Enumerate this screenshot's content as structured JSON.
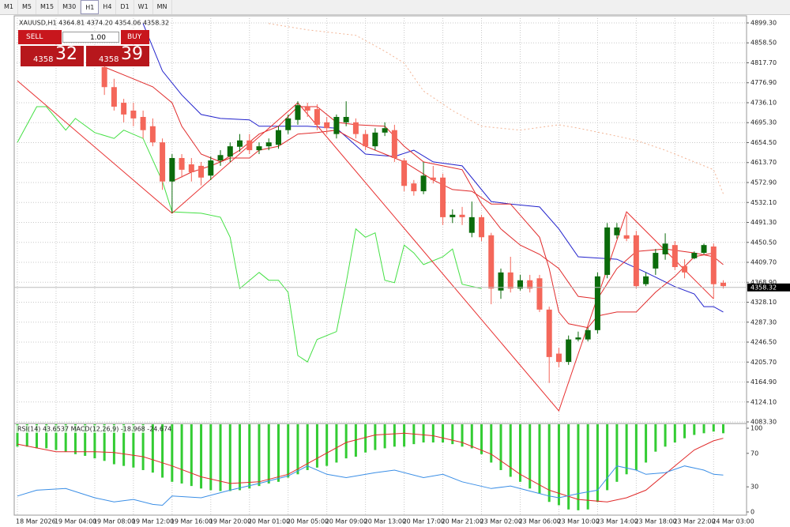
{
  "toolbar": {
    "timeframes": [
      "M1",
      "M5",
      "M15",
      "M30",
      "H1",
      "H4",
      "D1",
      "W1",
      "MN"
    ],
    "selected": "H1"
  },
  "trade_panel": {
    "sell": "SELL",
    "buy": "BUY",
    "lot": "1.00",
    "sell_price": {
      "prefix": "4358",
      "main": "32"
    },
    "buy_price": {
      "prefix": "4358",
      "main": "39"
    }
  },
  "chart_data": [
    {
      "type": "candlestick",
      "title": "XAUUSD,H1 4364.81 4374.20 4354.06 4358.32",
      "categories": [
        "18 Mar 2026",
        null,
        null,
        null,
        "19 Mar 04:00",
        null,
        null,
        null,
        "19 Mar 08:00",
        null,
        null,
        null,
        "19 Mar 12:00",
        null,
        null,
        null,
        "19 Mar 16:00",
        null,
        null,
        null,
        "19 Mar 20:00",
        null,
        null,
        null,
        "20 Mar 01:00",
        null,
        null,
        null,
        "20 Mar 05:00",
        null,
        null,
        null,
        "20 Mar 09:00",
        null,
        null,
        null,
        "20 Mar 13:00",
        null,
        null,
        null,
        "20 Mar 17:00",
        null,
        null,
        null,
        "20 Mar 21:00",
        null,
        null,
        null,
        "23 Mar 02:00",
        null,
        null,
        null,
        "23 Mar 06:00",
        null,
        null,
        null,
        "23 Mar 10:00",
        null,
        null,
        null,
        "23 Mar 14:00",
        null,
        null,
        null,
        "23 Mar 18:00",
        null,
        null,
        null,
        "23 Mar 22:00",
        null,
        null,
        null,
        "24 Mar 03:00",
        null
      ],
      "open": [
        null,
        null,
        null,
        null,
        null,
        null,
        null,
        null,
        null,
        4809,
        4768,
        4736,
        4720,
        4707,
        4688,
        4655,
        4575,
        4623,
        4610,
        4607,
        4587,
        4618,
        4626,
        4646,
        4659,
        4639,
        4647,
        4650,
        4680,
        4701,
        4728,
        4723,
        4696,
        4672,
        4696,
        4696,
        4672,
        4647,
        4675,
        4680,
        4618,
        4571,
        4555,
        4583,
        4583,
        4502,
        4507,
        4470,
        4502,
        4465,
        4352,
        4389,
        4356,
        4373,
        4377,
        4313,
        4223,
        4206,
        4252,
        4252,
        4271,
        4384,
        4465,
        4465,
        4465,
        4365,
        4397,
        4426,
        4445,
        4402,
        4418,
        4429,
        4442,
        4368
      ],
      "high": [
        null,
        null,
        null,
        null,
        null,
        null,
        null,
        null,
        null,
        4817,
        4785,
        4744,
        4736,
        4720,
        4704,
        4663,
        4631,
        4631,
        4623,
        4615,
        4626,
        4639,
        4655,
        4672,
        4672,
        4655,
        4663,
        4688,
        4712,
        4739,
        4736,
        4733,
        4707,
        4712,
        4739,
        4704,
        4680,
        4684,
        4696,
        4691,
        4623,
        4578,
        4615,
        4607,
        4591,
        4518,
        4523,
        4534,
        4507,
        4470,
        4397,
        4421,
        4384,
        4384,
        4384,
        4319,
        4235,
        4260,
        4268,
        4276,
        4389,
        4490,
        4490,
        4507,
        4474,
        4389,
        4437,
        4469,
        4453,
        4416,
        4432,
        4448,
        4448,
        4373
      ],
      "low": [
        null,
        null,
        null,
        null,
        null,
        null,
        null,
        null,
        null,
        4752,
        4720,
        4696,
        4688,
        4663,
        4647,
        4558,
        4510,
        4583,
        4575,
        4567,
        4578,
        4607,
        4615,
        4636,
        4631,
        4631,
        4639,
        4642,
        4672,
        4691,
        4707,
        4680,
        4672,
        4663,
        4688,
        4663,
        4639,
        4639,
        4668,
        4615,
        4555,
        4546,
        4549,
        4571,
        4486,
        4490,
        4486,
        4461,
        4453,
        4324,
        4335,
        4348,
        4352,
        4348,
        4308,
        4163,
        4195,
        4200,
        4248,
        4248,
        4264,
        4377,
        4458,
        4453,
        4356,
        4361,
        4384,
        4415,
        4394,
        4377,
        4416,
        4426,
        4335,
        4356
      ],
      "close": [
        null,
        null,
        null,
        null,
        null,
        null,
        null,
        null,
        null,
        4768,
        4728,
        4712,
        4704,
        4680,
        4655,
        4575,
        4623,
        4599,
        4594,
        4583,
        4618,
        4629,
        4647,
        4659,
        4639,
        4647,
        4655,
        4680,
        4704,
        4731,
        4720,
        4691,
        4684,
        4707,
        4707,
        4672,
        4647,
        4675,
        4684,
        4623,
        4566,
        4555,
        4587,
        4578,
        4502,
        4507,
        4502,
        4502,
        4461,
        4356,
        4389,
        4356,
        4373,
        4356,
        4313,
        4216,
        4206,
        4252,
        4256,
        4271,
        4381,
        4481,
        4481,
        4458,
        4361,
        4381,
        4429,
        4448,
        4400,
        4389,
        4429,
        4445,
        4365,
        4361
      ],
      "up_color": "#0b6b0b",
      "down_color": "#f4675a",
      "series": [
        {
          "color": "#f2b596",
          "dash": true,
          "x": [
            26,
            30,
            35,
            38,
            40,
            42,
            45,
            48,
            52,
            56,
            58,
            61,
            64,
            67,
            70,
            72,
            73
          ],
          "values": [
            4898,
            4885,
            4874,
            4841.5,
            4817,
            4760,
            4720,
            4688,
            4680,
            4691,
            4684,
            4672,
            4659,
            4639,
            4615,
            4599,
            4550
          ]
        },
        {
          "color": "#2222cc",
          "x": [
            13,
            15,
            17,
            19,
            21,
            24,
            25,
            30,
            33,
            36,
            39,
            41,
            43,
            46,
            49,
            51,
            54,
            56,
            58,
            62,
            65,
            68,
            70,
            71,
            72,
            73
          ],
          "values": [
            4898,
            4801,
            4752,
            4712,
            4704,
            4701,
            4688,
            4688,
            4684,
            4631,
            4626,
            4639,
            4615,
            4607,
            4534,
            4529,
            4523,
            4478,
            4421,
            4416,
            4389,
            4360,
            4345,
            4319,
            4319,
            4308
          ]
        },
        {
          "color": "#e02a2a",
          "x": [
            9,
            11,
            14,
            16,
            17,
            19,
            21,
            23,
            25,
            27,
            29,
            31,
            33,
            35,
            38,
            40,
            42,
            44,
            46,
            48,
            50,
            52,
            54,
            56,
            58,
            60,
            62,
            64,
            67,
            70,
            72,
            73
          ],
          "values": [
            4809,
            4793,
            4768.5,
            4736,
            4688,
            4631,
            4615,
            4639,
            4672,
            4688,
            4728,
            4728,
            4696,
            4691,
            4688,
            4647,
            4615,
            4607,
            4599,
            4529,
            4478,
            4445,
            4426,
            4397,
            4340,
            4335,
            4397,
            4432,
            4437,
            4429,
            4421,
            4405
          ]
        },
        {
          "color": "#e02a2a",
          "x": [
            16,
            18,
            20,
            22,
            24,
            25,
            27,
            29,
            31,
            33,
            36,
            38,
            40,
            43,
            45,
            47,
            49,
            51,
            54,
            55,
            56,
            57,
            59,
            60,
            62,
            64,
            66,
            68,
            70,
            72
          ],
          "values": [
            4575,
            4594,
            4607,
            4623,
            4623,
            4639,
            4647,
            4672,
            4675,
            4680,
            4647,
            4631,
            4615,
            4578,
            4558.5,
            4555,
            4529,
            4529,
            4461,
            4397,
            4308,
            4284,
            4276,
            4300,
            4308,
            4308,
            4348.5,
            4381,
            4421,
            4429
          ]
        },
        {
          "color": "#44e044",
          "x": [
            0,
            2,
            3,
            5,
            6,
            8,
            10,
            11,
            13,
            15,
            16,
            19,
            21,
            22,
            23,
            25,
            26,
            27,
            28,
            29,
            30,
            31,
            33,
            34,
            35,
            36,
            37,
            38,
            39,
            40,
            41,
            42,
            44,
            45,
            46,
            48
          ],
          "values": [
            4655,
            4728,
            4728,
            4680,
            4704,
            4675,
            4663,
            4680,
            4663,
            4575,
            4513,
            4510,
            4502,
            4461,
            4356,
            4389,
            4373,
            4373,
            4348.5,
            4219,
            4206,
            4252,
            4268,
            4368,
            4478,
            4461,
            4470,
            4373,
            4368,
            4445,
            4429,
            4405,
            4421,
            4437,
            4365,
            4356
          ]
        },
        {
          "color": "#e83030",
          "x": [
            0,
            16,
            29,
            56,
            63,
            72
          ],
          "values": [
            4781,
            4510,
            4736,
            4106,
            4513,
            4335
          ]
        }
      ],
      "last_price": 4358.32,
      "ylim": [
        4081.7,
        4910.6
      ],
      "yticks": [
        {
          "value": 4899.3,
          "label": "4899.30"
        },
        {
          "value": 4858.5,
          "label": "4858.50"
        },
        {
          "value": 4817.7,
          "label": "4817.70"
        },
        {
          "value": 4776.9,
          "label": "4776.90"
        },
        {
          "value": 4736.1,
          "label": "4736.10"
        },
        {
          "value": 4695.3,
          "label": "4695.30"
        },
        {
          "value": 4654.5,
          "label": "4654.50"
        },
        {
          "value": 4613.7,
          "label": "4613.70"
        },
        {
          "value": 4572.9,
          "label": "4572.90"
        },
        {
          "value": 4532.1,
          "label": "4532.10"
        },
        {
          "value": 4491.3,
          "label": "4491.30"
        },
        {
          "value": 4450.5,
          "label": "4450.50"
        },
        {
          "value": 4409.7,
          "label": "4409.70"
        },
        {
          "value": 4368.9,
          "label": "4368.90"
        },
        {
          "value": 4328.1,
          "label": "4328.10"
        },
        {
          "value": 4287.3,
          "label": "4287.30"
        },
        {
          "value": 4246.5,
          "label": "4246.50"
        },
        {
          "value": 4205.7,
          "label": "4205.70"
        },
        {
          "value": 4164.9,
          "label": "4164.90"
        },
        {
          "value": 4124.1,
          "label": "4124.10"
        },
        {
          "value": 4083.3,
          "label": "4083.30"
        }
      ],
      "grid": true
    },
    {
      "type": "indicator",
      "title": "RSI(14) 43.6537  MACD(12,26,9) -18.968 -24.674",
      "histogram": {
        "color": "#33cc33",
        "values": [
          78,
          78,
          76,
          76,
          74,
          72,
          69,
          67,
          64,
          61,
          57,
          55,
          53,
          50,
          47,
          41,
          36,
          34,
          31,
          28,
          26,
          25,
          25,
          26,
          28,
          31,
          34,
          36,
          41,
          45,
          50,
          53,
          55,
          59,
          64,
          66,
          71,
          74,
          76,
          78,
          78,
          81,
          83,
          83,
          83,
          81,
          78,
          76,
          69,
          59,
          50,
          42,
          36,
          28,
          22,
          12,
          8,
          3,
          2,
          3,
          12,
          26,
          36,
          45,
          50,
          59,
          72,
          78,
          83,
          88,
          92,
          94,
          96,
          94
        ]
      },
      "series": [
        {
          "color": "#e02a2a",
          "x": [
            0,
            4,
            8,
            10,
            13,
            16,
            19,
            22,
            25,
            28,
            31,
            34,
            37,
            40,
            43,
            46,
            49,
            52,
            55,
            58,
            61,
            63,
            65,
            68,
            70,
            72,
            73
          ],
          "values": [
            81,
            72,
            72,
            71,
            66,
            55,
            42,
            34,
            36,
            45,
            64,
            83,
            92,
            94,
            91,
            83,
            69,
            45,
            26,
            15,
            12,
            17,
            26,
            55,
            74,
            85,
            88
          ]
        },
        {
          "color": "#3a8ee6",
          "x": [
            0,
            2,
            5,
            8,
            10,
            12,
            14,
            15,
            16,
            19,
            22,
            25,
            28,
            30,
            32,
            34,
            37,
            39,
            42,
            44,
            46,
            49,
            51,
            53,
            55,
            56,
            58,
            60,
            62,
            64,
            65,
            67,
            69,
            71,
            72,
            73
          ],
          "values": [
            19,
            26,
            28,
            17,
            12,
            15,
            9,
            8,
            19,
            17,
            26,
            34,
            43,
            55,
            45,
            41,
            47,
            50,
            41,
            45,
            36,
            28,
            31,
            25,
            19,
            17,
            22,
            26,
            55,
            50,
            45,
            47,
            55,
            50,
            45,
            44
          ]
        }
      ],
      "ylim": [
        -3.8,
        104.7
      ],
      "yticks": [
        100,
        70,
        30,
        0
      ]
    }
  ]
}
